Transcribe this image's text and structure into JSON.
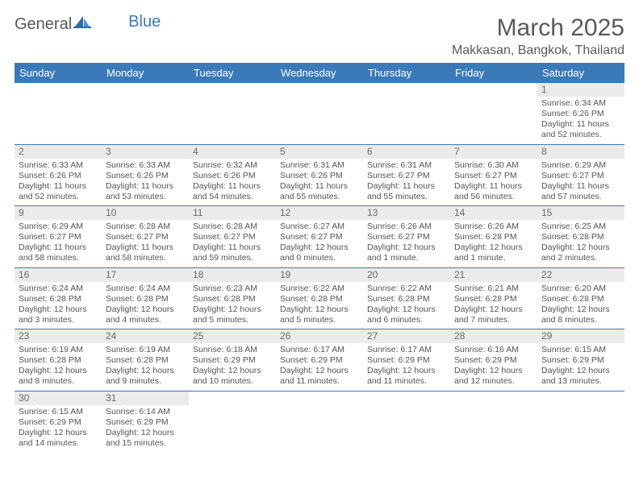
{
  "logo": {
    "text1": "General",
    "text2": "Blue"
  },
  "header": {
    "month_title": "March 2025",
    "location": "Makkasan, Bangkok, Thailand"
  },
  "weekdays": [
    "Sunday",
    "Monday",
    "Tuesday",
    "Wednesday",
    "Thursday",
    "Friday",
    "Saturday"
  ],
  "colors": {
    "header_bg": "#3b7ab8",
    "header_fg": "#ffffff",
    "daynum_bg": "#ebebeb",
    "text": "#555555",
    "border": "#3b7ab8"
  },
  "grid": [
    [
      null,
      null,
      null,
      null,
      null,
      null,
      {
        "n": "1",
        "sr": "Sunrise: 6:34 AM",
        "ss": "Sunset: 6:26 PM",
        "dl": "Daylight: 11 hours and 52 minutes."
      }
    ],
    [
      {
        "n": "2",
        "sr": "Sunrise: 6:33 AM",
        "ss": "Sunset: 6:26 PM",
        "dl": "Daylight: 11 hours and 52 minutes."
      },
      {
        "n": "3",
        "sr": "Sunrise: 6:33 AM",
        "ss": "Sunset: 6:26 PM",
        "dl": "Daylight: 11 hours and 53 minutes."
      },
      {
        "n": "4",
        "sr": "Sunrise: 6:32 AM",
        "ss": "Sunset: 6:26 PM",
        "dl": "Daylight: 11 hours and 54 minutes."
      },
      {
        "n": "5",
        "sr": "Sunrise: 6:31 AM",
        "ss": "Sunset: 6:26 PM",
        "dl": "Daylight: 11 hours and 55 minutes."
      },
      {
        "n": "6",
        "sr": "Sunrise: 6:31 AM",
        "ss": "Sunset: 6:27 PM",
        "dl": "Daylight: 11 hours and 55 minutes."
      },
      {
        "n": "7",
        "sr": "Sunrise: 6:30 AM",
        "ss": "Sunset: 6:27 PM",
        "dl": "Daylight: 11 hours and 56 minutes."
      },
      {
        "n": "8",
        "sr": "Sunrise: 6:29 AM",
        "ss": "Sunset: 6:27 PM",
        "dl": "Daylight: 11 hours and 57 minutes."
      }
    ],
    [
      {
        "n": "9",
        "sr": "Sunrise: 6:29 AM",
        "ss": "Sunset: 6:27 PM",
        "dl": "Daylight: 11 hours and 58 minutes."
      },
      {
        "n": "10",
        "sr": "Sunrise: 6:28 AM",
        "ss": "Sunset: 6:27 PM",
        "dl": "Daylight: 11 hours and 58 minutes."
      },
      {
        "n": "11",
        "sr": "Sunrise: 6:28 AM",
        "ss": "Sunset: 6:27 PM",
        "dl": "Daylight: 11 hours and 59 minutes."
      },
      {
        "n": "12",
        "sr": "Sunrise: 6:27 AM",
        "ss": "Sunset: 6:27 PM",
        "dl": "Daylight: 12 hours and 0 minutes."
      },
      {
        "n": "13",
        "sr": "Sunrise: 6:26 AM",
        "ss": "Sunset: 6:27 PM",
        "dl": "Daylight: 12 hours and 1 minute."
      },
      {
        "n": "14",
        "sr": "Sunrise: 6:26 AM",
        "ss": "Sunset: 6:28 PM",
        "dl": "Daylight: 12 hours and 1 minute."
      },
      {
        "n": "15",
        "sr": "Sunrise: 6:25 AM",
        "ss": "Sunset: 6:28 PM",
        "dl": "Daylight: 12 hours and 2 minutes."
      }
    ],
    [
      {
        "n": "16",
        "sr": "Sunrise: 6:24 AM",
        "ss": "Sunset: 6:28 PM",
        "dl": "Daylight: 12 hours and 3 minutes."
      },
      {
        "n": "17",
        "sr": "Sunrise: 6:24 AM",
        "ss": "Sunset: 6:28 PM",
        "dl": "Daylight: 12 hours and 4 minutes."
      },
      {
        "n": "18",
        "sr": "Sunrise: 6:23 AM",
        "ss": "Sunset: 6:28 PM",
        "dl": "Daylight: 12 hours and 5 minutes."
      },
      {
        "n": "19",
        "sr": "Sunrise: 6:22 AM",
        "ss": "Sunset: 6:28 PM",
        "dl": "Daylight: 12 hours and 5 minutes."
      },
      {
        "n": "20",
        "sr": "Sunrise: 6:22 AM",
        "ss": "Sunset: 6:28 PM",
        "dl": "Daylight: 12 hours and 6 minutes."
      },
      {
        "n": "21",
        "sr": "Sunrise: 6:21 AM",
        "ss": "Sunset: 6:28 PM",
        "dl": "Daylight: 12 hours and 7 minutes."
      },
      {
        "n": "22",
        "sr": "Sunrise: 6:20 AM",
        "ss": "Sunset: 6:28 PM",
        "dl": "Daylight: 12 hours and 8 minutes."
      }
    ],
    [
      {
        "n": "23",
        "sr": "Sunrise: 6:19 AM",
        "ss": "Sunset: 6:28 PM",
        "dl": "Daylight: 12 hours and 8 minutes."
      },
      {
        "n": "24",
        "sr": "Sunrise: 6:19 AM",
        "ss": "Sunset: 6:28 PM",
        "dl": "Daylight: 12 hours and 9 minutes."
      },
      {
        "n": "25",
        "sr": "Sunrise: 6:18 AM",
        "ss": "Sunset: 6:29 PM",
        "dl": "Daylight: 12 hours and 10 minutes."
      },
      {
        "n": "26",
        "sr": "Sunrise: 6:17 AM",
        "ss": "Sunset: 6:29 PM",
        "dl": "Daylight: 12 hours and 11 minutes."
      },
      {
        "n": "27",
        "sr": "Sunrise: 6:17 AM",
        "ss": "Sunset: 6:29 PM",
        "dl": "Daylight: 12 hours and 11 minutes."
      },
      {
        "n": "28",
        "sr": "Sunrise: 6:16 AM",
        "ss": "Sunset: 6:29 PM",
        "dl": "Daylight: 12 hours and 12 minutes."
      },
      {
        "n": "29",
        "sr": "Sunrise: 6:15 AM",
        "ss": "Sunset: 6:29 PM",
        "dl": "Daylight: 12 hours and 13 minutes."
      }
    ],
    [
      {
        "n": "30",
        "sr": "Sunrise: 6:15 AM",
        "ss": "Sunset: 6:29 PM",
        "dl": "Daylight: 12 hours and 14 minutes."
      },
      {
        "n": "31",
        "sr": "Sunrise: 6:14 AM",
        "ss": "Sunset: 6:29 PM",
        "dl": "Daylight: 12 hours and 15 minutes."
      },
      null,
      null,
      null,
      null,
      null
    ]
  ]
}
